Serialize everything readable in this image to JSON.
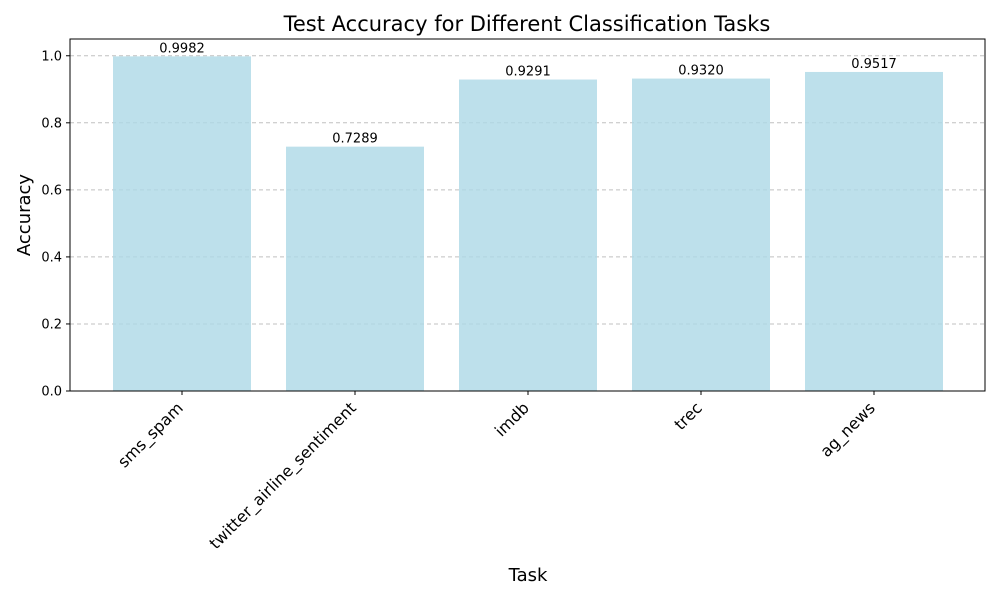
{
  "chart_data": {
    "type": "bar",
    "title": "Test Accuracy for Different Classification Tasks",
    "xlabel": "Task",
    "ylabel": "Accuracy",
    "categories": [
      "sms_spam",
      "twitter_airline_sentiment",
      "imdb",
      "trec",
      "ag_news"
    ],
    "values": [
      0.9982,
      0.7289,
      0.9291,
      0.932,
      0.9517
    ],
    "value_labels": [
      "0.9982",
      "0.7289",
      "0.9291",
      "0.9320",
      "0.9517"
    ],
    "ylim": [
      0,
      1.05
    ],
    "yticks": [
      0.0,
      0.2,
      0.4,
      0.6,
      0.8,
      1.0
    ],
    "ytick_labels": [
      "0.0",
      "0.2",
      "0.4",
      "0.6",
      "0.8",
      "1.0"
    ],
    "grid": "y-dashed",
    "colors": {
      "bar": "#add8e6",
      "grid": "#c0c0c0",
      "axis": "#000000"
    }
  }
}
